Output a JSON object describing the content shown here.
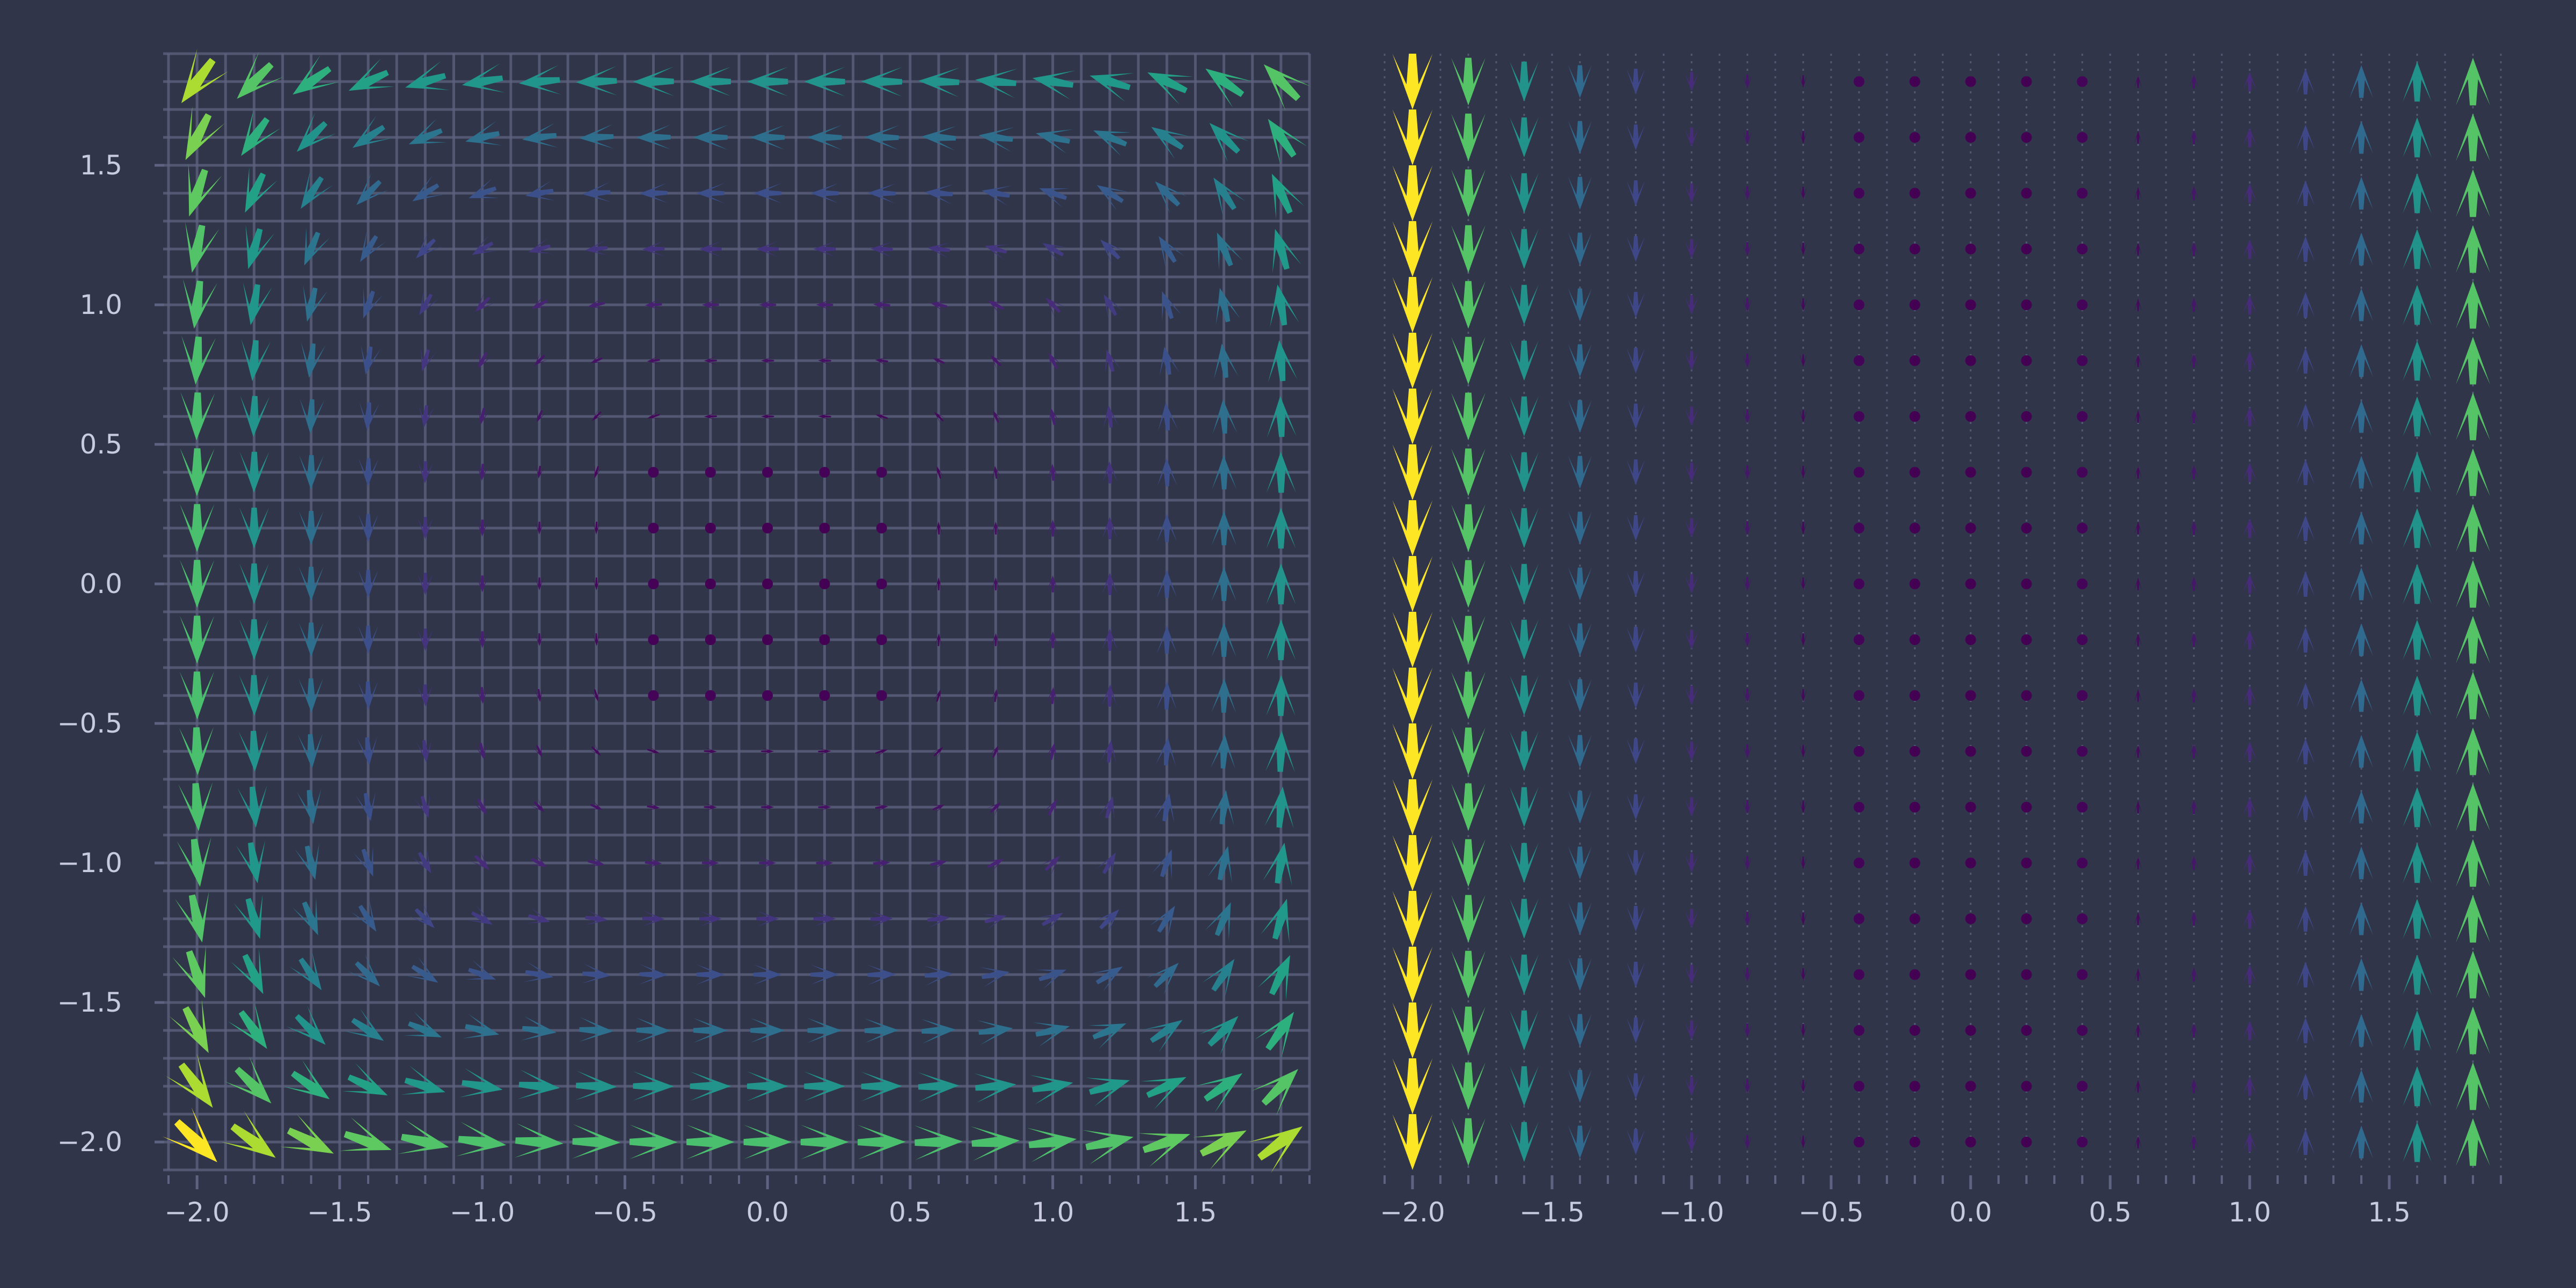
{
  "chart_data": [
    {
      "type": "quiver",
      "field": "rotational",
      "grid": {
        "x_start": -2.0,
        "x_step": 0.2,
        "x_count": 20,
        "y_start": -2.0,
        "y_step": 0.2,
        "y_count": 20
      },
      "vector": {
        "u": "-y^3",
        "v": "x^3"
      },
      "colormap": "viridis",
      "xlim": [
        -2.1,
        1.9
      ],
      "ylim": [
        -2.1,
        1.9
      ],
      "xticks": [
        {
          "value": -2.0,
          "label": "−2.0"
        },
        {
          "value": -1.5,
          "label": "−1.5"
        },
        {
          "value": -1.0,
          "label": "−1.0"
        },
        {
          "value": -0.5,
          "label": "−0.5"
        },
        {
          "value": 0.0,
          "label": "0.0"
        },
        {
          "value": 0.5,
          "label": "0.5"
        },
        {
          "value": 1.0,
          "label": "1.0"
        },
        {
          "value": 1.5,
          "label": "1.5"
        }
      ],
      "yticks": [
        {
          "value": -2.0,
          "label": "−2.0"
        },
        {
          "value": -1.5,
          "label": "−1.5"
        },
        {
          "value": -1.0,
          "label": "−1.0"
        },
        {
          "value": -0.5,
          "label": "−0.5"
        },
        {
          "value": 0.0,
          "label": "0.0"
        },
        {
          "value": 0.5,
          "label": "0.5"
        },
        {
          "value": 1.0,
          "label": "1.0"
        },
        {
          "value": 1.5,
          "label": "1.5"
        }
      ],
      "grid_lines": "dense solid",
      "title": "",
      "xlabel": "",
      "ylabel": ""
    },
    {
      "type": "quiver",
      "field": "shear",
      "grid": {
        "x_start": -2.0,
        "x_step": 0.2,
        "x_count": 20,
        "y_start": -2.0,
        "y_step": 0.2,
        "y_count": 20
      },
      "vector": {
        "u": "0",
        "v": "x^3"
      },
      "colormap": "viridis",
      "xlim": [
        -2.1,
        1.9
      ],
      "ylim": [
        -2.1,
        1.9
      ],
      "xticks": [
        {
          "value": -2.0,
          "label": "−2.0"
        },
        {
          "value": -1.5,
          "label": "−1.5"
        },
        {
          "value": -1.0,
          "label": "−1.0"
        },
        {
          "value": -0.5,
          "label": "−0.5"
        },
        {
          "value": 0.0,
          "label": "0.0"
        },
        {
          "value": 0.5,
          "label": "0.5"
        },
        {
          "value": 1.0,
          "label": "1.0"
        },
        {
          "value": 1.5,
          "label": "1.5"
        }
      ],
      "yticks": [],
      "grid_lines": "vertical dotted",
      "title": "",
      "xlabel": "",
      "ylabel": ""
    }
  ],
  "colors": {
    "background": "#30354a",
    "grid": "#5d6380",
    "tick_text": "#c8cbe0",
    "viridis": [
      "#440154",
      "#482878",
      "#3e4989",
      "#31688e",
      "#26828e",
      "#1f9e89",
      "#35b779",
      "#6ece58",
      "#b5de2b",
      "#fde725"
    ]
  }
}
